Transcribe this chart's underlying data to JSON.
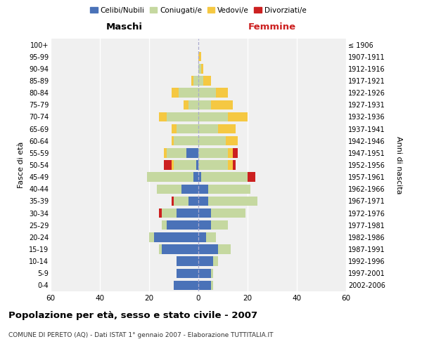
{
  "age_groups": [
    "0-4",
    "5-9",
    "10-14",
    "15-19",
    "20-24",
    "25-29",
    "30-34",
    "35-39",
    "40-44",
    "45-49",
    "50-54",
    "55-59",
    "60-64",
    "65-69",
    "70-74",
    "75-79",
    "80-84",
    "85-89",
    "90-94",
    "95-99",
    "100+"
  ],
  "birth_years": [
    "2002-2006",
    "1997-2001",
    "1992-1996",
    "1987-1991",
    "1982-1986",
    "1977-1981",
    "1972-1976",
    "1967-1971",
    "1962-1966",
    "1957-1961",
    "1952-1956",
    "1947-1951",
    "1942-1946",
    "1937-1941",
    "1932-1936",
    "1927-1931",
    "1922-1926",
    "1917-1921",
    "1912-1916",
    "1907-1911",
    "≤ 1906"
  ],
  "maschi": {
    "celibi": [
      10,
      9,
      9,
      15,
      18,
      13,
      9,
      4,
      7,
      2,
      1,
      5,
      0,
      0,
      0,
      0,
      0,
      0,
      0,
      0,
      0
    ],
    "coniugati": [
      0,
      0,
      0,
      1,
      2,
      2,
      6,
      6,
      10,
      19,
      9,
      8,
      10,
      9,
      13,
      4,
      8,
      2,
      0,
      0,
      0
    ],
    "vedovi": [
      0,
      0,
      0,
      0,
      0,
      0,
      0,
      0,
      0,
      0,
      1,
      1,
      1,
      2,
      3,
      2,
      3,
      1,
      0,
      0,
      0
    ],
    "divorziati": [
      0,
      0,
      0,
      0,
      0,
      0,
      1,
      1,
      0,
      0,
      3,
      0,
      0,
      0,
      0,
      0,
      0,
      0,
      0,
      0,
      0
    ]
  },
  "femmine": {
    "nubili": [
      5,
      5,
      6,
      8,
      3,
      5,
      5,
      4,
      4,
      1,
      0,
      0,
      0,
      0,
      0,
      0,
      0,
      0,
      0,
      0,
      0
    ],
    "coniugate": [
      1,
      1,
      2,
      5,
      4,
      7,
      14,
      20,
      17,
      19,
      12,
      12,
      11,
      8,
      12,
      5,
      7,
      2,
      1,
      0,
      0
    ],
    "vedove": [
      0,
      0,
      0,
      0,
      0,
      0,
      0,
      0,
      0,
      0,
      2,
      2,
      5,
      7,
      8,
      9,
      5,
      3,
      1,
      1,
      0
    ],
    "divorziate": [
      0,
      0,
      0,
      0,
      0,
      0,
      0,
      0,
      0,
      3,
      1,
      2,
      0,
      0,
      0,
      0,
      0,
      0,
      0,
      0,
      0
    ]
  },
  "colors": {
    "celibi_nubili": "#4a72b8",
    "coniugati": "#c5d8a0",
    "vedovi": "#f5c842",
    "divorziati": "#cc2020"
  },
  "xlim": 60,
  "title": "Popolazione per età, sesso e stato civile - 2007",
  "subtitle": "COMUNE DI PERETO (AQ) - Dati ISTAT 1° gennaio 2007 - Elaborazione TUTTITALIA.IT",
  "ylabel_left": "Fasce di età",
  "ylabel_right": "Anni di nascita",
  "xlabel_left": "Maschi",
  "xlabel_right": "Femmine",
  "background_color": "#f0f0f0"
}
